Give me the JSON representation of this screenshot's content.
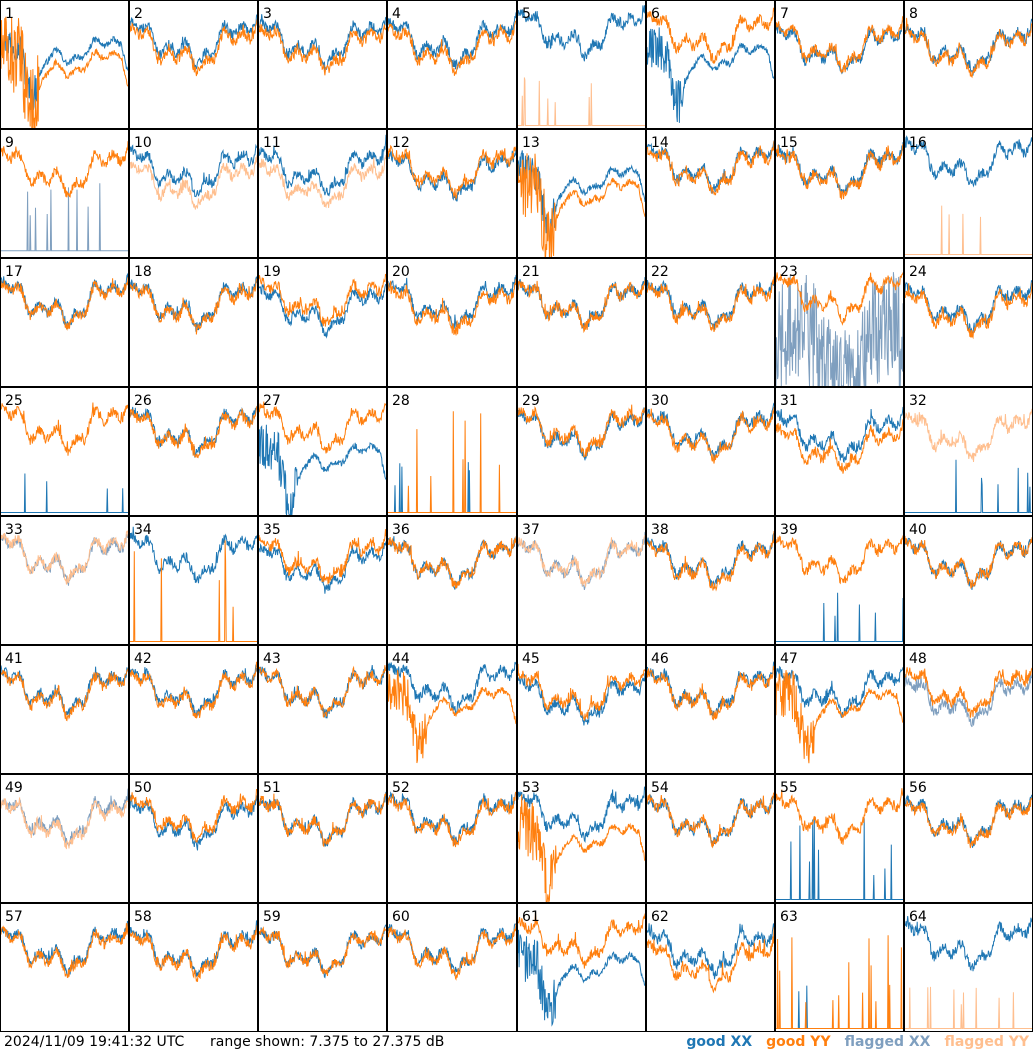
{
  "footer": {
    "timestamp": "2024/11/09 19:41:32 UTC",
    "range_text": "range shown: 7.375 to 27.375 dB"
  },
  "legend": [
    {
      "label": "good XX",
      "color": "#1f77b4"
    },
    {
      "label": "good YY",
      "color": "#ff7f0e"
    },
    {
      "label": "flagged XX",
      "color": "#7f9fbf"
    },
    {
      "label": "flagged YY",
      "color": "#ffbf8f"
    }
  ],
  "chart_data": {
    "type": "line",
    "title": "",
    "ylim": [
      7.375,
      27.375
    ],
    "yunit": "dB",
    "layout": "8x8 small multiples",
    "grid": false,
    "legend_placement": "bottom-right",
    "panels": [
      {
        "id": "1",
        "xx": {
          "status": "good",
          "shape": "dip",
          "level": 0.6,
          "noise": 0.3
        },
        "yy": {
          "status": "good",
          "shape": "dip",
          "level": 0.5,
          "noise": 0.7
        }
      },
      {
        "id": "2",
        "xx": {
          "status": "good",
          "shape": "normal",
          "level": 0.65,
          "noise": 0.2
        },
        "yy": {
          "status": "good",
          "shape": "normal",
          "level": 0.6,
          "noise": 0.3
        }
      },
      {
        "id": "3",
        "xx": {
          "status": "good",
          "shape": "normal",
          "level": 0.65,
          "noise": 0.2
        },
        "yy": {
          "status": "good",
          "shape": "normal",
          "level": 0.6,
          "noise": 0.3
        }
      },
      {
        "id": "4",
        "xx": {
          "status": "good",
          "shape": "normal",
          "level": 0.65,
          "noise": 0.2
        },
        "yy": {
          "status": "good",
          "shape": "normal",
          "level": 0.6,
          "noise": 0.3
        }
      },
      {
        "id": "5",
        "xx": {
          "status": "good",
          "shape": "normal",
          "level": 0.72,
          "noise": 0.3
        },
        "yy": {
          "status": "flagged",
          "shape": "spikes",
          "level": 0.02,
          "noise": 0.3
        }
      },
      {
        "id": "6",
        "xx": {
          "status": "good",
          "shape": "dip",
          "level": 0.55,
          "noise": 0.4
        },
        "yy": {
          "status": "good",
          "shape": "normal",
          "level": 0.7,
          "noise": 0.3
        }
      },
      {
        "id": "7",
        "xx": {
          "status": "good",
          "shape": "normal",
          "level": 0.6,
          "noise": 0.2
        },
        "yy": {
          "status": "good",
          "shape": "normal",
          "level": 0.62,
          "noise": 0.35
        }
      },
      {
        "id": "8",
        "xx": {
          "status": "good",
          "shape": "normal",
          "level": 0.6,
          "noise": 0.2
        },
        "yy": {
          "status": "good",
          "shape": "normal",
          "level": 0.58,
          "noise": 0.35
        }
      },
      {
        "id": "9",
        "xx": {
          "status": "flagged",
          "shape": "spikes",
          "level": 0.05,
          "noise": 0.5
        },
        "yy": {
          "status": "good",
          "shape": "normal",
          "level": 0.65,
          "noise": 0.3
        }
      },
      {
        "id": "10",
        "xx": {
          "status": "good",
          "shape": "normal",
          "level": 0.65,
          "noise": 0.3
        },
        "yy": {
          "status": "flagged",
          "shape": "normal",
          "level": 0.55,
          "noise": 0.3
        }
      },
      {
        "id": "11",
        "xx": {
          "status": "good",
          "shape": "normal",
          "level": 0.65,
          "noise": 0.3
        },
        "yy": {
          "status": "flagged",
          "shape": "normal",
          "level": 0.55,
          "noise": 0.3
        }
      },
      {
        "id": "12",
        "xx": {
          "status": "good",
          "shape": "normal",
          "level": 0.62,
          "noise": 0.3
        },
        "yy": {
          "status": "good",
          "shape": "normal",
          "level": 0.65,
          "noise": 0.35
        }
      },
      {
        "id": "13",
        "xx": {
          "status": "good",
          "shape": "dip",
          "level": 0.6,
          "noise": 0.3
        },
        "yy": {
          "status": "good",
          "shape": "dip",
          "level": 0.5,
          "noise": 0.6
        }
      },
      {
        "id": "14",
        "xx": {
          "status": "good",
          "shape": "normal",
          "level": 0.68,
          "noise": 0.2
        },
        "yy": {
          "status": "good",
          "shape": "normal",
          "level": 0.66,
          "noise": 0.3
        }
      },
      {
        "id": "15",
        "xx": {
          "status": "good",
          "shape": "normal",
          "level": 0.66,
          "noise": 0.2
        },
        "yy": {
          "status": "good",
          "shape": "normal",
          "level": 0.64,
          "noise": 0.3
        }
      },
      {
        "id": "16",
        "xx": {
          "status": "good",
          "shape": "normal",
          "level": 0.72,
          "noise": 0.3
        },
        "yy": {
          "status": "flagged",
          "shape": "spikes",
          "level": 0.02,
          "noise": 0.3
        }
      },
      {
        "id": "17",
        "xx": {
          "status": "good",
          "shape": "normal",
          "level": 0.64,
          "noise": 0.2
        },
        "yy": {
          "status": "good",
          "shape": "normal",
          "level": 0.63,
          "noise": 0.3
        }
      },
      {
        "id": "18",
        "xx": {
          "status": "good",
          "shape": "normal",
          "level": 0.62,
          "noise": 0.2
        },
        "yy": {
          "status": "good",
          "shape": "normal",
          "level": 0.6,
          "noise": 0.3
        }
      },
      {
        "id": "19",
        "xx": {
          "status": "good",
          "shape": "normal",
          "level": 0.58,
          "noise": 0.25
        },
        "yy": {
          "status": "good",
          "shape": "normal",
          "level": 0.64,
          "noise": 0.3
        }
      },
      {
        "id": "20",
        "xx": {
          "status": "good",
          "shape": "normal",
          "level": 0.62,
          "noise": 0.3
        },
        "yy": {
          "status": "good",
          "shape": "normal",
          "level": 0.58,
          "noise": 0.35
        }
      },
      {
        "id": "21",
        "xx": {
          "status": "good",
          "shape": "normal",
          "level": 0.62,
          "noise": 0.2
        },
        "yy": {
          "status": "good",
          "shape": "normal",
          "level": 0.62,
          "noise": 0.3
        }
      },
      {
        "id": "22",
        "xx": {
          "status": "good",
          "shape": "normal",
          "level": 0.62,
          "noise": 0.2
        },
        "yy": {
          "status": "good",
          "shape": "normal",
          "level": 0.6,
          "noise": 0.3
        }
      },
      {
        "id": "23",
        "xx": {
          "status": "flagged",
          "shape": "noisy",
          "level": 0.25,
          "noise": 1.0
        },
        "yy": {
          "status": "good",
          "shape": "normal",
          "level": 0.68,
          "noise": 0.3
        }
      },
      {
        "id": "24",
        "xx": {
          "status": "good",
          "shape": "normal",
          "level": 0.6,
          "noise": 0.25
        },
        "yy": {
          "status": "good",
          "shape": "normal",
          "level": 0.56,
          "noise": 0.3
        }
      },
      {
        "id": "25",
        "xx": {
          "status": "good",
          "shape": "spikes",
          "level": 0.02,
          "noise": 0.2
        },
        "yy": {
          "status": "good",
          "shape": "normal",
          "level": 0.66,
          "noise": 0.3
        }
      },
      {
        "id": "26",
        "xx": {
          "status": "good",
          "shape": "normal",
          "level": 0.64,
          "noise": 0.25
        },
        "yy": {
          "status": "good",
          "shape": "normal",
          "level": 0.62,
          "noise": 0.3
        }
      },
      {
        "id": "27",
        "xx": {
          "status": "good",
          "shape": "dip",
          "level": 0.45,
          "noise": 0.4
        },
        "yy": {
          "status": "good",
          "shape": "normal",
          "level": 0.66,
          "noise": 0.3
        }
      },
      {
        "id": "28",
        "xx": {
          "status": "good",
          "shape": "spikes",
          "level": 0.02,
          "noise": 0.3
        },
        "yy": {
          "status": "good",
          "shape": "spikes",
          "level": 0.02,
          "noise": 0.8
        }
      },
      {
        "id": "29",
        "xx": {
          "status": "good",
          "shape": "normal",
          "level": 0.62,
          "noise": 0.2
        },
        "yy": {
          "status": "good",
          "shape": "normal",
          "level": 0.64,
          "noise": 0.3
        }
      },
      {
        "id": "30",
        "xx": {
          "status": "good",
          "shape": "normal",
          "level": 0.62,
          "noise": 0.25
        },
        "yy": {
          "status": "good",
          "shape": "normal",
          "level": 0.6,
          "noise": 0.3
        }
      },
      {
        "id": "31",
        "xx": {
          "status": "good",
          "shape": "normal",
          "level": 0.6,
          "noise": 0.25
        },
        "yy": {
          "status": "good",
          "shape": "normal",
          "level": 0.5,
          "noise": 0.3
        }
      },
      {
        "id": "32",
        "xx": {
          "status": "good",
          "shape": "spikes",
          "level": 0.02,
          "noise": 0.3
        },
        "yy": {
          "status": "flagged",
          "shape": "normal",
          "level": 0.6,
          "noise": 0.4
        }
      },
      {
        "id": "33",
        "xx": {
          "status": "flagged",
          "shape": "normal",
          "level": 0.65,
          "noise": 0.2
        },
        "yy": {
          "status": "flagged",
          "shape": "normal",
          "level": 0.66,
          "noise": 0.25
        }
      },
      {
        "id": "34",
        "xx": {
          "status": "good",
          "shape": "normal",
          "level": 0.66,
          "noise": 0.3
        },
        "yy": {
          "status": "good",
          "shape": "spikes",
          "level": 0.02,
          "noise": 0.8
        }
      },
      {
        "id": "35",
        "xx": {
          "status": "good",
          "shape": "normal",
          "level": 0.58,
          "noise": 0.3
        },
        "yy": {
          "status": "good",
          "shape": "normal",
          "level": 0.64,
          "noise": 0.35
        }
      },
      {
        "id": "36",
        "xx": {
          "status": "good",
          "shape": "normal",
          "level": 0.62,
          "noise": 0.2
        },
        "yy": {
          "status": "good",
          "shape": "normal",
          "level": 0.62,
          "noise": 0.3
        }
      },
      {
        "id": "37",
        "xx": {
          "status": "flagged",
          "shape": "normal",
          "level": 0.62,
          "noise": 0.2
        },
        "yy": {
          "status": "flagged",
          "shape": "normal",
          "level": 0.62,
          "noise": 0.25
        }
      },
      {
        "id": "38",
        "xx": {
          "status": "good",
          "shape": "normal",
          "level": 0.62,
          "noise": 0.2
        },
        "yy": {
          "status": "good",
          "shape": "normal",
          "level": 0.6,
          "noise": 0.3
        }
      },
      {
        "id": "39",
        "xx": {
          "status": "good",
          "shape": "spikes",
          "level": 0.02,
          "noise": 0.3
        },
        "yy": {
          "status": "good",
          "shape": "normal",
          "level": 0.64,
          "noise": 0.3
        }
      },
      {
        "id": "40",
        "xx": {
          "status": "good",
          "shape": "normal",
          "level": 0.62,
          "noise": 0.2
        },
        "yy": {
          "status": "good",
          "shape": "normal",
          "level": 0.62,
          "noise": 0.3
        }
      },
      {
        "id": "41",
        "xx": {
          "status": "good",
          "shape": "normal",
          "level": 0.62,
          "noise": 0.2
        },
        "yy": {
          "status": "good",
          "shape": "normal",
          "level": 0.6,
          "noise": 0.3
        }
      },
      {
        "id": "42",
        "xx": {
          "status": "good",
          "shape": "normal",
          "level": 0.62,
          "noise": 0.2
        },
        "yy": {
          "status": "good",
          "shape": "normal",
          "level": 0.6,
          "noise": 0.3
        }
      },
      {
        "id": "43",
        "xx": {
          "status": "good",
          "shape": "normal",
          "level": 0.62,
          "noise": 0.2
        },
        "yy": {
          "status": "good",
          "shape": "normal",
          "level": 0.62,
          "noise": 0.3
        }
      },
      {
        "id": "44",
        "xx": {
          "status": "good",
          "shape": "normal",
          "level": 0.66,
          "noise": 0.3
        },
        "yy": {
          "status": "good",
          "shape": "dip",
          "level": 0.56,
          "noise": 0.4
        }
      },
      {
        "id": "45",
        "xx": {
          "status": "good",
          "shape": "normal",
          "level": 0.55,
          "noise": 0.3
        },
        "yy": {
          "status": "good",
          "shape": "normal",
          "level": 0.6,
          "noise": 0.35
        }
      },
      {
        "id": "46",
        "xx": {
          "status": "good",
          "shape": "normal",
          "level": 0.62,
          "noise": 0.2
        },
        "yy": {
          "status": "good",
          "shape": "normal",
          "level": 0.6,
          "noise": 0.3
        }
      },
      {
        "id": "47",
        "xx": {
          "status": "good",
          "shape": "normal",
          "level": 0.62,
          "noise": 0.3
        },
        "yy": {
          "status": "good",
          "shape": "dip",
          "level": 0.55,
          "noise": 0.45
        }
      },
      {
        "id": "48",
        "xx": {
          "status": "flagged",
          "shape": "normal",
          "level": 0.55,
          "noise": 0.3
        },
        "yy": {
          "status": "good",
          "shape": "normal",
          "level": 0.62,
          "noise": 0.35
        }
      },
      {
        "id": "49",
        "xx": {
          "status": "flagged",
          "shape": "normal",
          "level": 0.62,
          "noise": 0.25
        },
        "yy": {
          "status": "flagged",
          "shape": "normal",
          "level": 0.6,
          "noise": 0.3
        }
      },
      {
        "id": "50",
        "xx": {
          "status": "good",
          "shape": "normal",
          "level": 0.6,
          "noise": 0.25
        },
        "yy": {
          "status": "good",
          "shape": "normal",
          "level": 0.64,
          "noise": 0.3
        }
      },
      {
        "id": "51",
        "xx": {
          "status": "good",
          "shape": "normal",
          "level": 0.62,
          "noise": 0.2
        },
        "yy": {
          "status": "good",
          "shape": "normal",
          "level": 0.62,
          "noise": 0.3
        }
      },
      {
        "id": "52",
        "xx": {
          "status": "good",
          "shape": "normal",
          "level": 0.64,
          "noise": 0.25
        },
        "yy": {
          "status": "good",
          "shape": "normal",
          "level": 0.62,
          "noise": 0.3
        }
      },
      {
        "id": "53",
        "xx": {
          "status": "good",
          "shape": "normal",
          "level": 0.66,
          "noise": 0.3
        },
        "yy": {
          "status": "good",
          "shape": "dip",
          "level": 0.5,
          "noise": 0.55
        }
      },
      {
        "id": "54",
        "xx": {
          "status": "good",
          "shape": "normal",
          "level": 0.62,
          "noise": 0.2
        },
        "yy": {
          "status": "good",
          "shape": "normal",
          "level": 0.62,
          "noise": 0.3
        }
      },
      {
        "id": "55",
        "xx": {
          "status": "good",
          "shape": "spikes",
          "level": 0.02,
          "noise": 0.7
        },
        "yy": {
          "status": "good",
          "shape": "normal",
          "level": 0.64,
          "noise": 0.3
        }
      },
      {
        "id": "56",
        "xx": {
          "status": "good",
          "shape": "normal",
          "level": 0.62,
          "noise": 0.25
        },
        "yy": {
          "status": "good",
          "shape": "normal",
          "level": 0.6,
          "noise": 0.3
        }
      },
      {
        "id": "57",
        "xx": {
          "status": "good",
          "shape": "normal",
          "level": 0.62,
          "noise": 0.2
        },
        "yy": {
          "status": "good",
          "shape": "normal",
          "level": 0.6,
          "noise": 0.3
        }
      },
      {
        "id": "58",
        "xx": {
          "status": "good",
          "shape": "normal",
          "level": 0.6,
          "noise": 0.2
        },
        "yy": {
          "status": "good",
          "shape": "normal",
          "level": 0.58,
          "noise": 0.3
        }
      },
      {
        "id": "59",
        "xx": {
          "status": "good",
          "shape": "normal",
          "level": 0.6,
          "noise": 0.2
        },
        "yy": {
          "status": "good",
          "shape": "normal",
          "level": 0.6,
          "noise": 0.3
        }
      },
      {
        "id": "60",
        "xx": {
          "status": "good",
          "shape": "normal",
          "level": 0.62,
          "noise": 0.2
        },
        "yy": {
          "status": "good",
          "shape": "normal",
          "level": 0.6,
          "noise": 0.3
        }
      },
      {
        "id": "61",
        "xx": {
          "status": "good",
          "shape": "dip",
          "level": 0.5,
          "noise": 0.45
        },
        "yy": {
          "status": "good",
          "shape": "normal",
          "level": 0.68,
          "noise": 0.35
        }
      },
      {
        "id": "62",
        "xx": {
          "status": "good",
          "shape": "normal",
          "level": 0.6,
          "noise": 0.3
        },
        "yy": {
          "status": "good",
          "shape": "normal",
          "level": 0.5,
          "noise": 0.45
        }
      },
      {
        "id": "63",
        "xx": {
          "status": "good",
          "shape": "spikes",
          "level": 0.02,
          "noise": 0.2
        },
        "yy": {
          "status": "good",
          "shape": "spikes",
          "level": 0.02,
          "noise": 0.8
        }
      },
      {
        "id": "64",
        "xx": {
          "status": "good",
          "shape": "normal",
          "level": 0.66,
          "noise": 0.3
        },
        "yy": {
          "status": "flagged",
          "shape": "spikes",
          "level": 0.02,
          "noise": 0.3
        }
      }
    ]
  }
}
